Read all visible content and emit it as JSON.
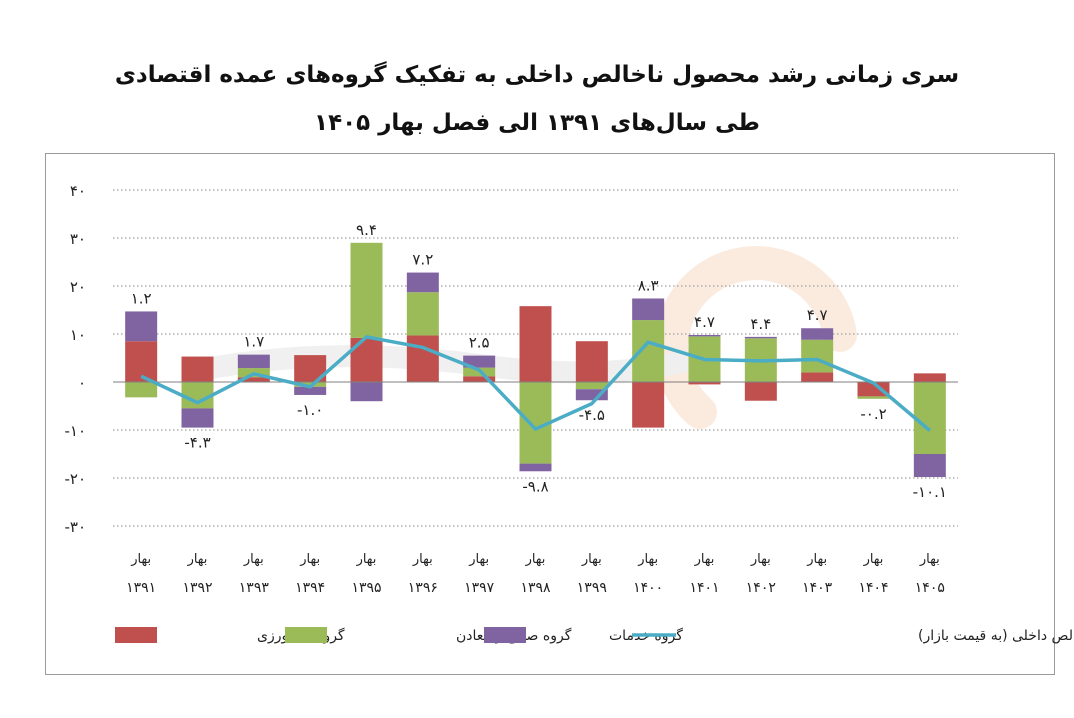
{
  "chart_data": {
    "type": "bar",
    "stacked": true,
    "title": "سری زمانی رشد محصول ناخالص داخلی به تفکیک گروه‌های عمده اقتصادی",
    "subtitle": "طی سال‌های ۱۳۹۱ الی فصل بهار ۱۴۰۵",
    "xlabel": "",
    "ylabel": "",
    "ylim": [
      -30,
      40
    ],
    "yticks": [
      40,
      30,
      20,
      10,
      0,
      -10,
      -20,
      -30
    ],
    "ytick_labels": [
      "۴۰",
      "۳۰",
      "۲۰",
      "۱۰",
      "۰",
      "-۱۰",
      "-۲۰",
      "-۳۰"
    ],
    "grid": true,
    "legend_position": "bottom",
    "categories": [
      [
        "بهار",
        "۱۳۹۱"
      ],
      [
        "بهار",
        "۱۳۹۲"
      ],
      [
        "بهار",
        "۱۳۹۳"
      ],
      [
        "بهار",
        "۱۳۹۴"
      ],
      [
        "بهار",
        "۱۳۹۵"
      ],
      [
        "بهار",
        "۱۳۹۶"
      ],
      [
        "بهار",
        "۱۳۹۷"
      ],
      [
        "بهار",
        "۱۳۹۸"
      ],
      [
        "بهار",
        "۱۳۹۹"
      ],
      [
        "بهار",
        "۱۴۰۰"
      ],
      [
        "بهار",
        "۱۴۰۱"
      ],
      [
        "بهار",
        "۱۴۰۲"
      ],
      [
        "بهار",
        "۱۴۰۳"
      ],
      [
        "بهار",
        "۱۴۰۴"
      ],
      [
        "بهار",
        "۱۴۰۵"
      ]
    ],
    "series": [
      {
        "name": "گروه کشاورزی",
        "color": "#c0504d",
        "values": [
          8.5,
          5.3,
          1.0,
          5.6,
          9.2,
          9.7,
          1.2,
          15.8,
          8.5,
          -9.5,
          -0.5,
          -3.9,
          2.0,
          -3.0,
          1.8
        ]
      },
      {
        "name": "گروه صنایع و معادن",
        "color": "#9bbb59",
        "values": [
          -3.2,
          -5.5,
          1.9,
          -1.0,
          19.8,
          9.0,
          1.8,
          -17.0,
          -1.5,
          12.9,
          9.5,
          9.1,
          6.8,
          -0.5,
          -15.0
        ]
      },
      {
        "name": "گروه خدمات",
        "color": "#8064a2",
        "values": [
          6.2,
          -4.0,
          2.8,
          -1.7,
          -4.0,
          4.1,
          2.5,
          -1.6,
          -2.3,
          4.5,
          0.3,
          0.3,
          2.4,
          0.0,
          -4.8
        ]
      }
    ],
    "line": {
      "name": "محصول ناخالص داخلی (به قیمت بازار)",
      "color": "#4bacc6",
      "values": [
        1.2,
        -4.3,
        1.7,
        -1.0,
        9.4,
        7.2,
        2.5,
        -9.8,
        -4.5,
        8.3,
        4.7,
        4.4,
        4.7,
        -0.2,
        -10.1
      ]
    },
    "data_labels": [
      "۱.۲",
      "-۴.۳",
      "۱.۷",
      "-۱.۰",
      "۹.۴",
      "۷.۲",
      "۲.۵",
      "-۹.۸",
      "-۴.۵",
      "۸.۳",
      "۴.۷",
      "۴.۴",
      "۴.۷",
      "-۰.۲",
      "-۱۰.۱"
    ]
  }
}
